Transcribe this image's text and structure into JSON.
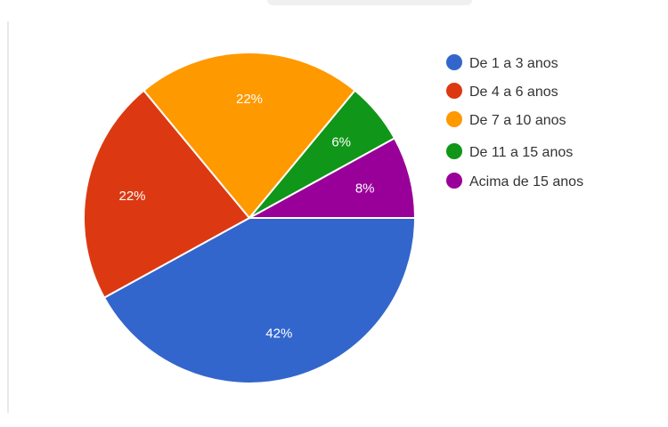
{
  "chart_data": {
    "type": "pie",
    "title": "",
    "slices": [
      {
        "label": "De 1 a 3 anos",
        "value": 42,
        "pct_label": "42%",
        "color": "#3366cc"
      },
      {
        "label": "De 4 a 6 anos",
        "value": 22,
        "pct_label": "22%",
        "color": "#dc3912"
      },
      {
        "label": "De 7 a 10 anos",
        "value": 22,
        "pct_label": "22%",
        "color": "#ff9900"
      },
      {
        "label": "De 11 a 15 anos",
        "value": 6,
        "pct_label": "6%",
        "color": "#109618"
      },
      {
        "label": "Acima de 15 anos",
        "value": 8,
        "pct_label": "8%",
        "color": "#990099"
      }
    ],
    "legend": {
      "placement": "right",
      "items": [
        {
          "label": "De 1 a 3 anos",
          "color": "#3366cc"
        },
        {
          "label": "De 4 a 6 anos",
          "color": "#dc3912"
        },
        {
          "label": "De 7 a 10 anos",
          "color": "#ff9900"
        },
        {
          "label": "De 11 a 15 anos",
          "color": "#109618"
        },
        {
          "label": "Acima de 15 anos",
          "color": "#990099"
        }
      ]
    }
  }
}
